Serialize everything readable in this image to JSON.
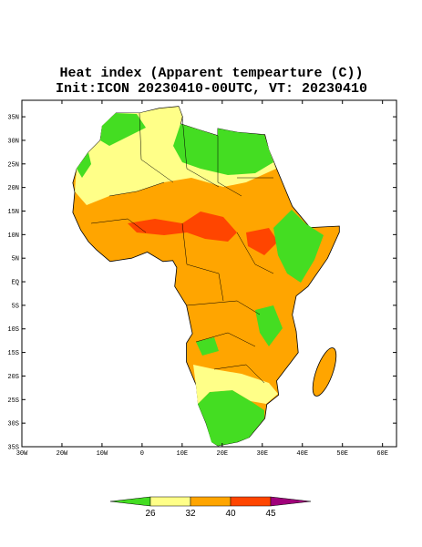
{
  "header": {
    "title": "Heat index (Apparent tempearture (C))",
    "subtitle": "Init:ICON 20230410-00UTC, VT: 20230410"
  },
  "map": {
    "lon_range": [
      -30,
      63.5
    ],
    "lat_range": [
      -35,
      38.5
    ],
    "lat_ticks": [
      {
        "value": 35,
        "label": "35N"
      },
      {
        "value": 30,
        "label": "30N"
      },
      {
        "value": 25,
        "label": "25N"
      },
      {
        "value": 20,
        "label": "20N"
      },
      {
        "value": 15,
        "label": "15N"
      },
      {
        "value": 10,
        "label": "10N"
      },
      {
        "value": 5,
        "label": "5N"
      },
      {
        "value": 0,
        "label": "EQ"
      },
      {
        "value": -5,
        "label": "5S"
      },
      {
        "value": -10,
        "label": "10S"
      },
      {
        "value": -15,
        "label": "15S"
      },
      {
        "value": -20,
        "label": "20S"
      },
      {
        "value": -25,
        "label": "25S"
      },
      {
        "value": -30,
        "label": "30S"
      },
      {
        "value": -35,
        "label": "35S"
      }
    ],
    "lon_ticks": [
      {
        "value": -30,
        "label": "30W"
      },
      {
        "value": -20,
        "label": "20W"
      },
      {
        "value": -10,
        "label": "10W"
      },
      {
        "value": 0,
        "label": "0"
      },
      {
        "value": 10,
        "label": "10E"
      },
      {
        "value": 20,
        "label": "20E"
      },
      {
        "value": 30,
        "label": "30E"
      },
      {
        "value": 40,
        "label": "40E"
      },
      {
        "value": 50,
        "label": "50E"
      },
      {
        "value": 60,
        "label": "60E"
      }
    ]
  },
  "colorbar": {
    "levels": [
      26,
      32,
      40,
      45
    ],
    "colors": [
      "#44dd22",
      "#ffff88",
      "#ffa500",
      "#ff4500",
      "#a0007a"
    ]
  }
}
